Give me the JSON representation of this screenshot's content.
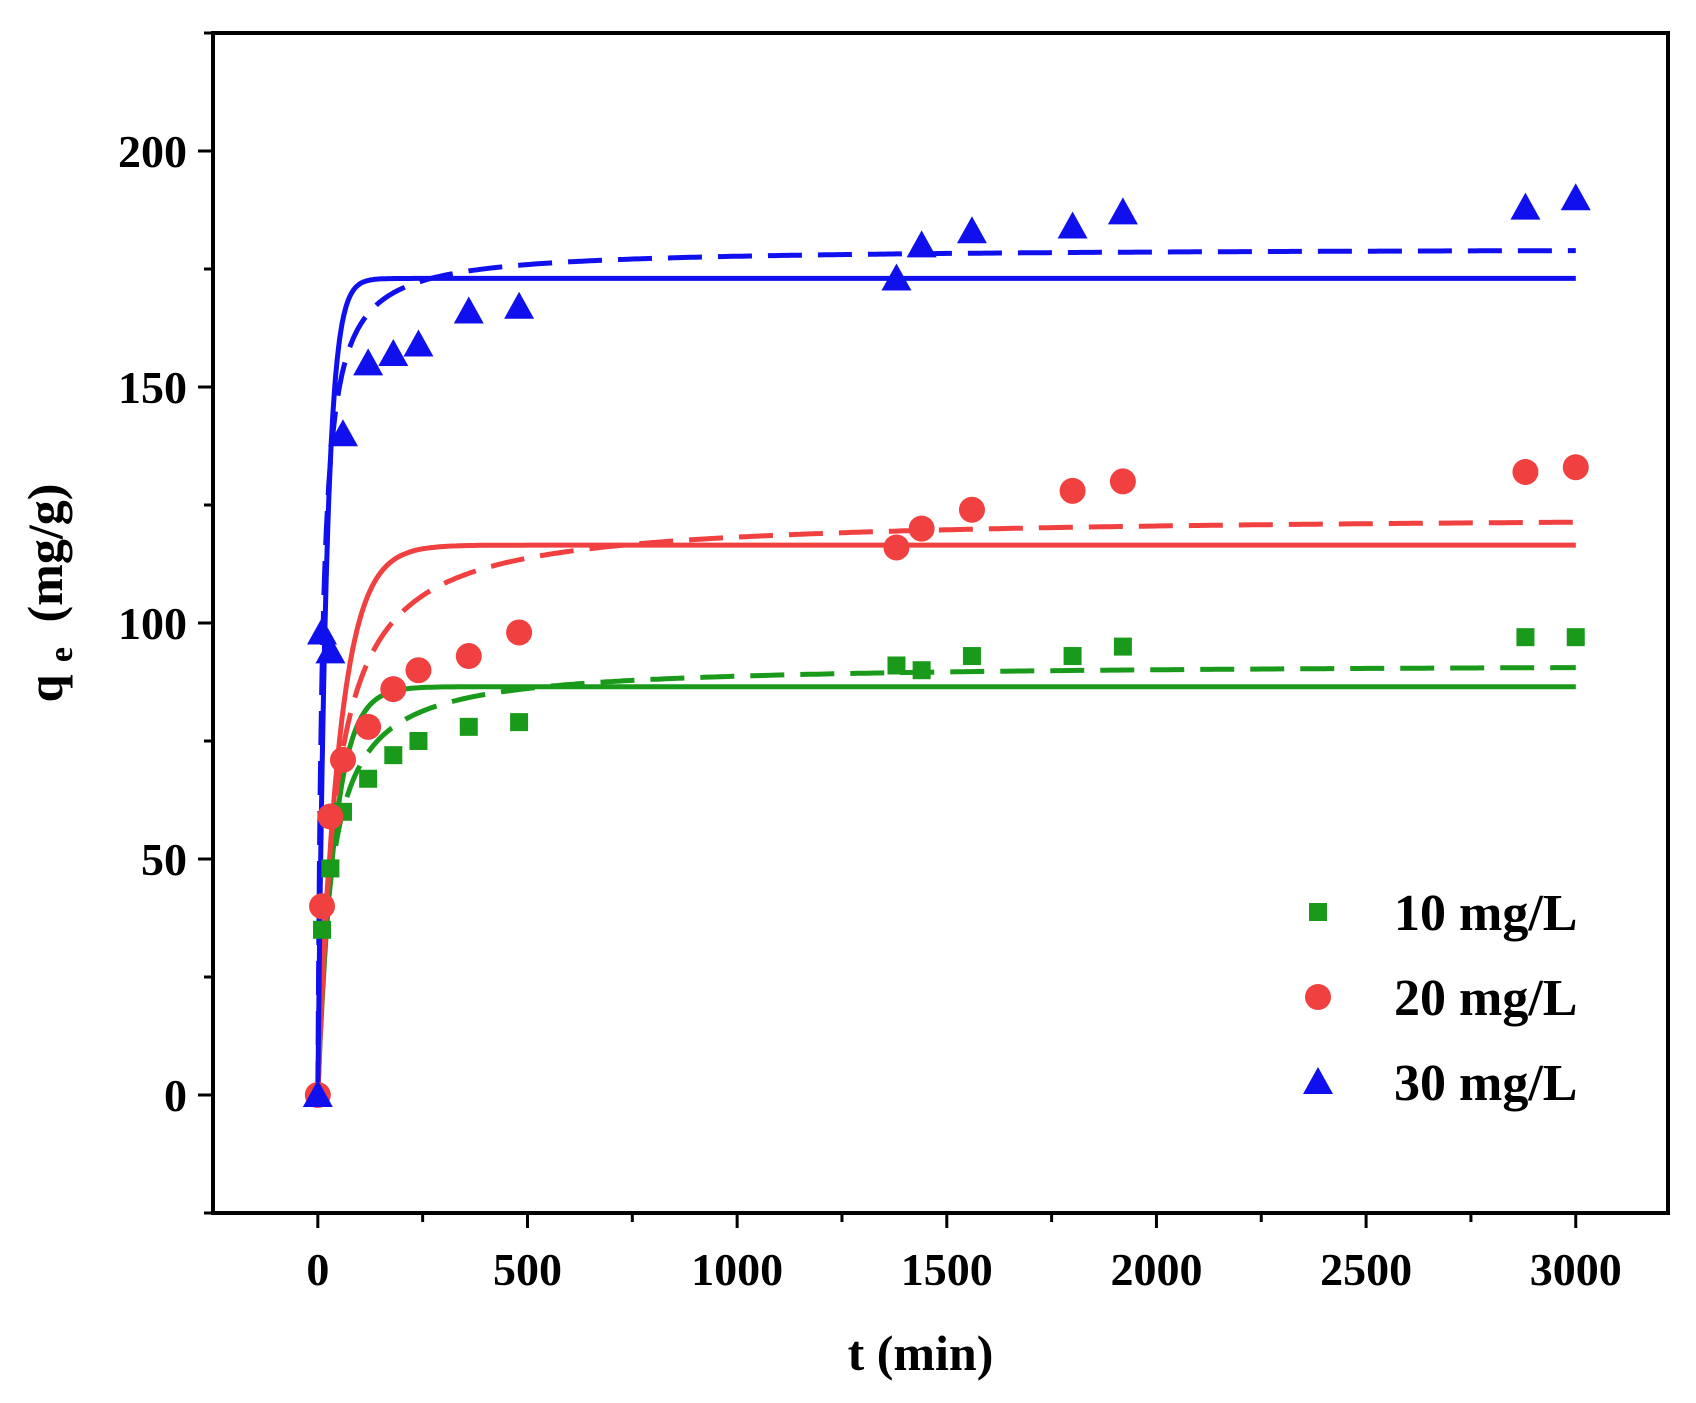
{
  "chart_data": {
    "type": "scatter",
    "title": "",
    "xlabel": "t (min)",
    "ylabel_main": "q",
    "ylabel_sub": "e",
    "ylabel_unit": "(mg/g)",
    "xlim": [
      -250,
      3220
    ],
    "ylim": [
      -25,
      225
    ],
    "xticks": [
      0,
      500,
      1000,
      1500,
      2000,
      2500,
      3000
    ],
    "yticks": [
      0,
      50,
      100,
      150,
      200
    ],
    "xtick_labels": [
      "0",
      "500",
      "1000",
      "1500",
      "2000",
      "2500",
      "3000"
    ],
    "ytick_labels": [
      "0",
      "50",
      "100",
      "150",
      "200"
    ],
    "grid": false,
    "legend_position": "bottom-right",
    "series": [
      {
        "name": "10 mg/L",
        "color": "#1a9a1a",
        "marker": "square",
        "x": [
          0,
          10,
          30,
          60,
          120,
          180,
          240,
          360,
          480,
          1380,
          1440,
          1560,
          1800,
          1920,
          2880,
          3000
        ],
        "y": [
          0,
          35,
          48,
          60,
          67,
          72,
          75,
          78,
          79,
          91,
          90,
          93,
          93,
          95,
          97,
          97
        ],
        "pfo": {
          "qe": 86.5,
          "k": 0.025
        },
        "pso": {
          "qe": 91.5,
          "k": 0.00035
        }
      },
      {
        "name": "20 mg/L",
        "color": "#f04040",
        "marker": "circle",
        "x": [
          0,
          10,
          30,
          60,
          120,
          180,
          240,
          360,
          480,
          1380,
          1440,
          1560,
          1800,
          1920,
          2880,
          3000
        ],
        "y": [
          0,
          40,
          59,
          71,
          78,
          86,
          90,
          93,
          98,
          116,
          120,
          124,
          128,
          130,
          132,
          133
        ],
        "pfo": {
          "qe": 116.5,
          "k": 0.02
        },
        "pso": {
          "qe": 123.0,
          "k": 0.0002
        }
      },
      {
        "name": "30 mg/L",
        "color": "#1010ee",
        "marker": "triangle",
        "x": [
          0,
          10,
          30,
          60,
          120,
          180,
          240,
          360,
          480,
          1380,
          1440,
          1560,
          1800,
          1920,
          2880,
          3000
        ],
        "y": [
          0,
          98,
          94,
          140,
          155,
          157,
          159,
          166,
          167,
          173,
          180,
          183,
          184,
          187,
          188,
          190
        ],
        "pfo": {
          "qe": 173.0,
          "k": 0.05
        },
        "pso": {
          "qe": 179.5,
          "k": 0.00055
        }
      }
    ]
  }
}
